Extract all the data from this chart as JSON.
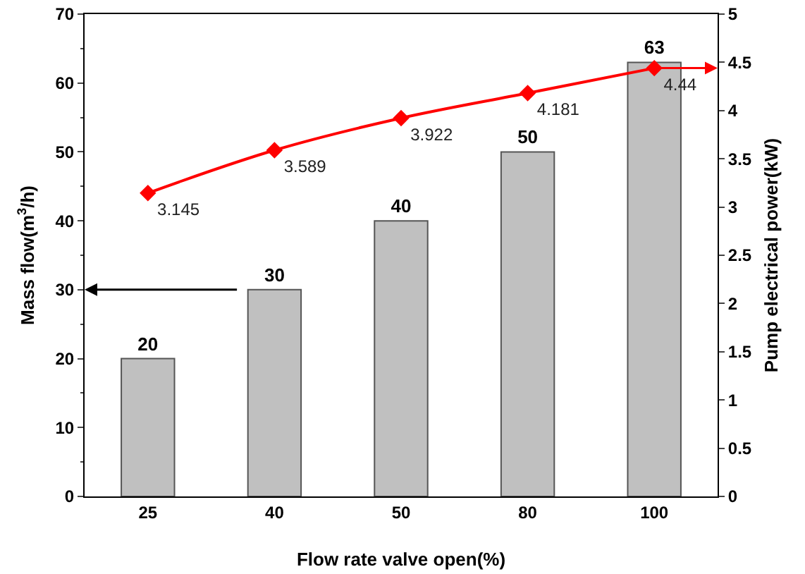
{
  "chart_data": {
    "type": "bar",
    "xlabel": "Flow rate valve open(%)",
    "ylabel": "Mass flow(m$^{3}$/h)",
    "y2label": "Pump electrical power(kW)",
    "categories": [
      "25",
      "40",
      "50",
      "80",
      "100"
    ],
    "series": [
      {
        "color": "#c0c0c0",
        "values": [
          20,
          30,
          40,
          50,
          63
        ]
      },
      {
        "type": "line",
        "axis": "y2",
        "color": "#ff0000",
        "marker": "diamond",
        "values": [
          3.145,
          3.589,
          3.922,
          4.181,
          4.44
        ]
      }
    ],
    "ylim": [
      0,
      70
    ],
    "yticks": [
      0,
      10,
      20,
      30,
      40,
      50,
      60,
      70
    ],
    "y2lim": [
      0,
      5
    ],
    "y2ticks": [
      0,
      0.5,
      1,
      1.5,
      2,
      2.5,
      3,
      3.5,
      4,
      4.5,
      5
    ],
    "data_labels": true
  }
}
